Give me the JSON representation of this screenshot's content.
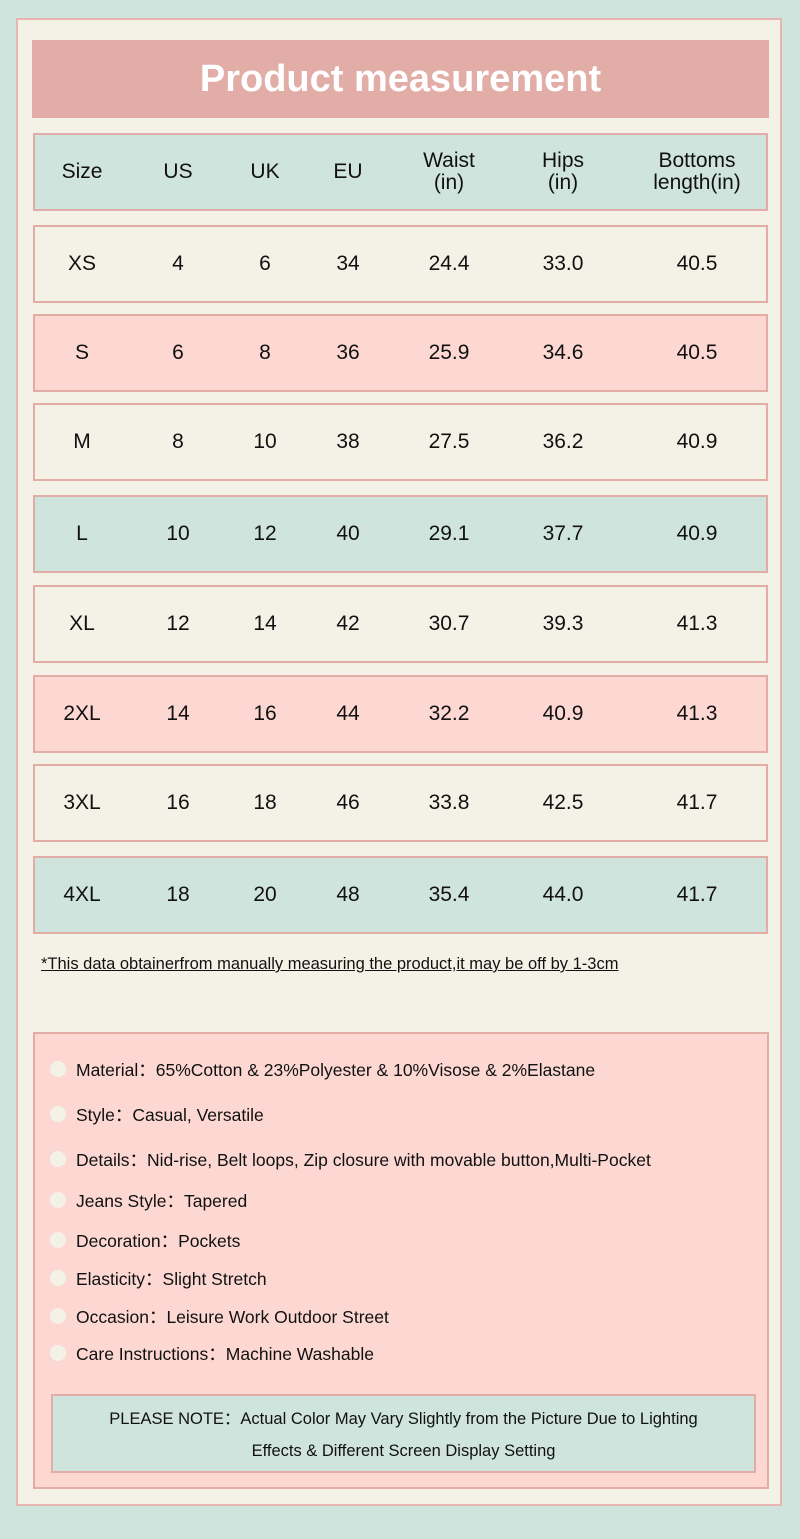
{
  "title": "Product measurement",
  "colors": {
    "background": "#cfe4dc",
    "panel": "#f4f2e6",
    "title_bar": "#e2aca7",
    "pink_row": "#fdd8d3",
    "mint_row": "#cfe4dc",
    "border": "#e2aca7"
  },
  "table": {
    "headers": [
      "Size",
      "US",
      "UK",
      "EU",
      "Waist\n(in)",
      "Hips\n(in)",
      "Bottoms\nlength(in)"
    ],
    "rows": [
      [
        "XS",
        "4",
        "6",
        "34",
        "24.4",
        "33.0",
        "40.5"
      ],
      [
        "S",
        "6",
        "8",
        "36",
        "25.9",
        "34.6",
        "40.5"
      ],
      [
        "M",
        "8",
        "10",
        "38",
        "27.5",
        "36.2",
        "40.9"
      ],
      [
        "L",
        "10",
        "12",
        "40",
        "29.1",
        "37.7",
        "40.9"
      ],
      [
        "XL",
        "12",
        "14",
        "42",
        "30.7",
        "39.3",
        "41.3"
      ],
      [
        "2XL",
        "14",
        "16",
        "44",
        "32.2",
        "40.9",
        "41.3"
      ],
      [
        "3XL",
        "16",
        "18",
        "46",
        "33.8",
        "42.5",
        "41.7"
      ],
      [
        "4XL",
        "18",
        "20",
        "48",
        "35.4",
        "44.0",
        "41.7"
      ]
    ]
  },
  "footnote": "*This data obtainerfrom manually measuring the product,it may be off by 1-3cm",
  "details": [
    "Material：65%Cotton & 23%Polyester & 10%Visose & 2%Elastane",
    "Style：Casual, Versatile",
    "Details：Nid-rise, Belt loops, Zip closure with movable button,Multi-Pocket",
    "Jeans Style：Tapered",
    "Decoration：Pockets",
    "Elasticity：Slight Stretch",
    "Occasion：Leisure Work Outdoor Street",
    "Care Instructions：Machine Washable"
  ],
  "note": {
    "line1": "PLEASE NOTE：Actual Color May Vary Slightly from the Picture Due to Lighting",
    "line2": "Effects & Different Screen Display Setting"
  }
}
